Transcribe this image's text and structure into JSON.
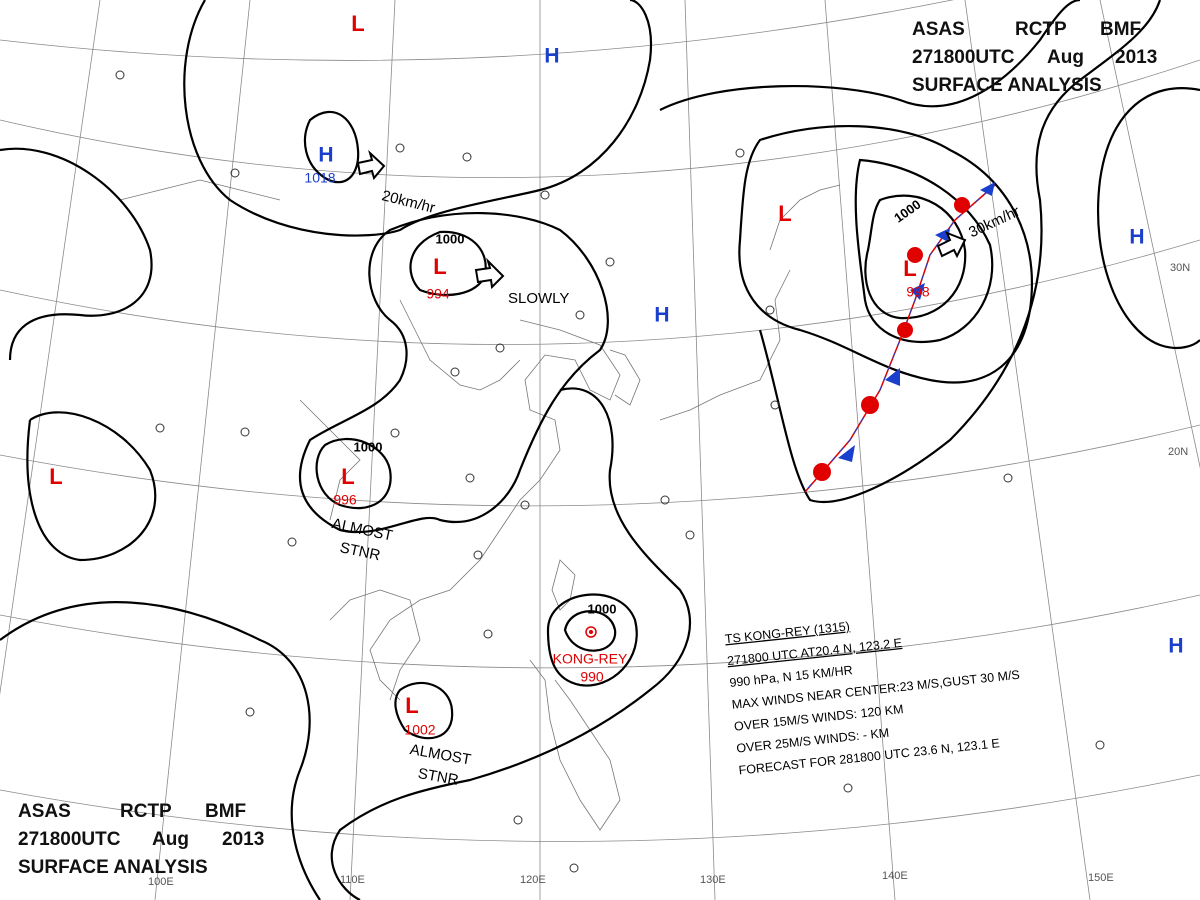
{
  "header": {
    "agency": "ASAS",
    "station": "RCTP",
    "code": "BMF",
    "time": "271800UTC",
    "month": "Aug",
    "year": "2013",
    "title": "SURFACE ANALYSIS"
  },
  "pressure_systems": [
    {
      "symbol": "H",
      "pressure": 1018
    },
    {
      "symbol": "H"
    },
    {
      "symbol": "H"
    },
    {
      "symbol": "H"
    },
    {
      "symbol": "H"
    },
    {
      "symbol": "L"
    },
    {
      "symbol": "L",
      "pressure": 994
    },
    {
      "symbol": "L"
    },
    {
      "symbol": "L",
      "pressure": 998
    },
    {
      "symbol": "L",
      "pressure": 996
    },
    {
      "symbol": "L"
    },
    {
      "symbol": "L",
      "pressure": 1002
    }
  ],
  "isobar_labels": [
    1000,
    1000,
    1000,
    1000
  ],
  "motions": [
    "20km/hr",
    "SLOWLY",
    "30km/hr",
    "ALMOST",
    "STNR",
    "ALMOST",
    "STNR"
  ],
  "typhoon": {
    "name": "KONG-REY",
    "pressure": 990,
    "bulletin": [
      "TS KONG-REY (1315)",
      "271800 UTC AT20.4 N, 123.2 E",
      "990 hPa, N 15 KM/HR",
      "MAX WINDS NEAR CENTER:23 M/S,GUST 30 M/S",
      "OVER 15M/S WINDS: 120 KM",
      "OVER 25M/S WINDS: - KM",
      "FORECAST FOR 281800 UTC 23.6 N, 123.1 E"
    ]
  },
  "grid_labels": [
    "100E",
    "110E",
    "120E",
    "130E",
    "140E",
    "150E",
    "30N",
    "20N"
  ]
}
